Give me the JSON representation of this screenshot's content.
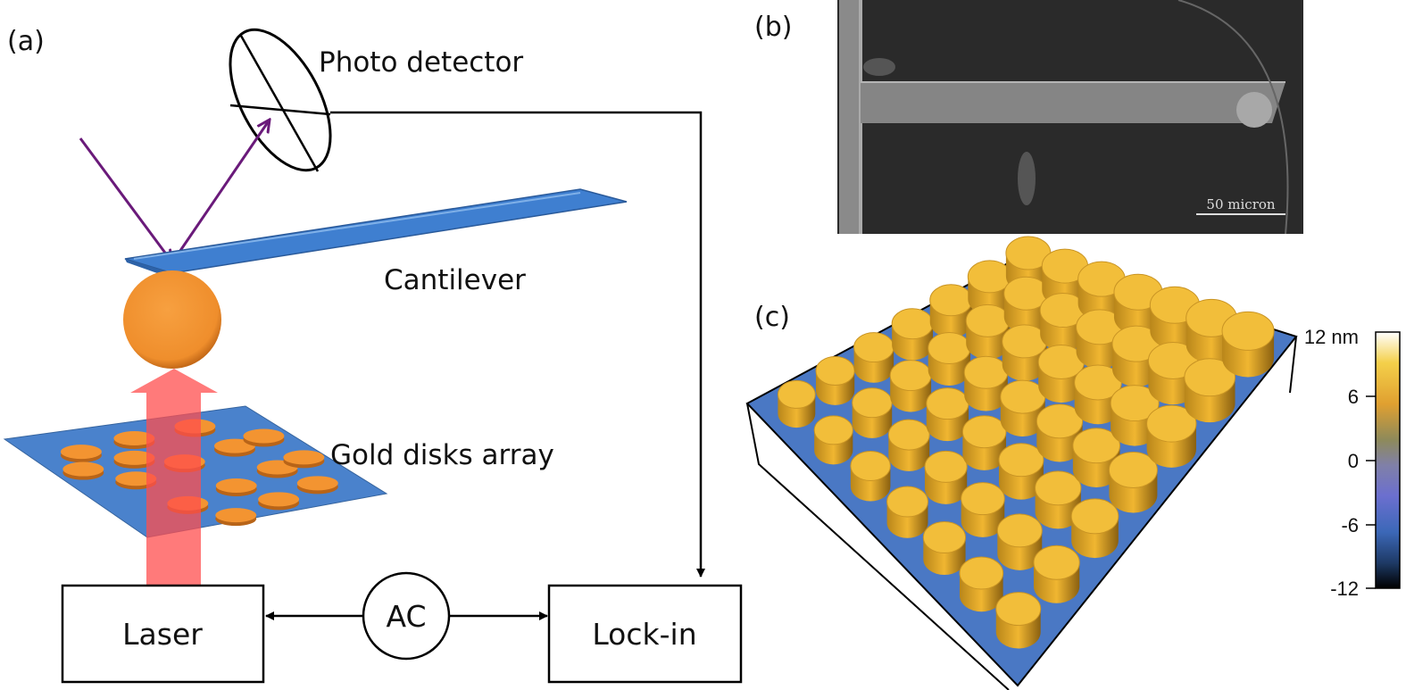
{
  "panels": {
    "a": {
      "label": "(a)",
      "photo_detector": "Photo detector",
      "cantilever": "Cantilever",
      "gold_disks": "Gold disks array",
      "laser": "Laser",
      "ac": "AC",
      "lockin": "Lock-in"
    },
    "b": {
      "label": "(b)",
      "scale_bar": "50 micron"
    },
    "c": {
      "label": "(c)",
      "colorbar": {
        "ticks": [
          "12 nm",
          "6",
          "0",
          "-6",
          "-12"
        ],
        "colors": [
          "#ffffff",
          "#f2c23a",
          "#9a8f52",
          "#7575c8",
          "#3a66b8",
          "#000000"
        ]
      }
    }
  },
  "colors": {
    "cantilever": "#3f7fd0",
    "sphere": "#f39431",
    "laser_beam": "#ff5a5a",
    "light_path": "#6a1a7a",
    "substrate": "#4a82cc",
    "disk": "#f39431"
  }
}
